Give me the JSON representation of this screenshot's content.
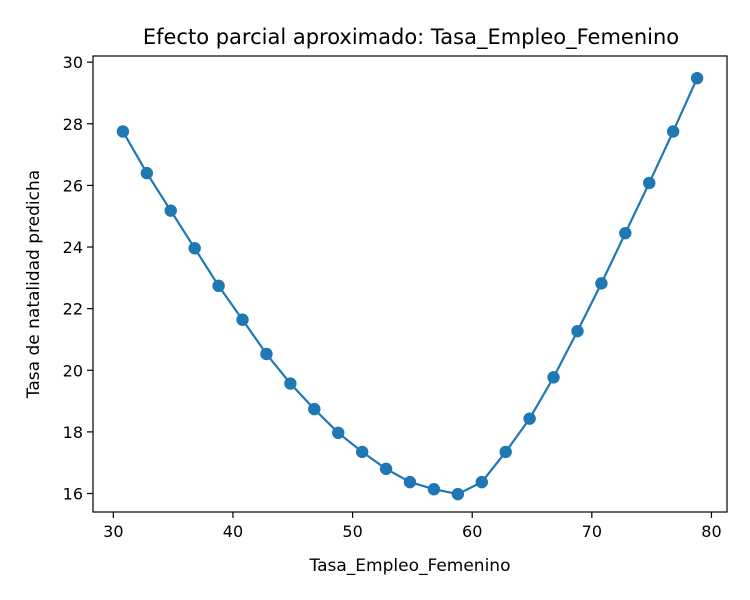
{
  "chart_data": {
    "type": "line",
    "title": "Efecto parcial aproximado: Tasa_Empleo_Femenino",
    "xlabel": "Tasa_Empleo_Femenino",
    "ylabel": "Tasa de natalidad predicha",
    "xlim": [
      28.3,
      81.3
    ],
    "ylim": [
      15.4,
      30.2
    ],
    "xticks": [
      30,
      40,
      50,
      60,
      70,
      80
    ],
    "yticks": [
      16,
      18,
      20,
      22,
      24,
      26,
      28,
      30
    ],
    "grid": false,
    "series": [
      {
        "color": "#1f77b4",
        "marker": "circle",
        "x": [
          30.8,
          32.8,
          34.8,
          36.8,
          38.8,
          40.8,
          42.8,
          44.8,
          46.8,
          48.8,
          50.8,
          52.8,
          54.8,
          56.8,
          58.8,
          60.8,
          62.8,
          64.8,
          66.8,
          68.8,
          70.8,
          72.8,
          74.8,
          76.8,
          78.8
        ],
        "y": [
          27.75,
          26.4,
          25.18,
          23.96,
          22.74,
          21.64,
          20.53,
          19.57,
          18.74,
          17.97,
          17.35,
          16.8,
          16.37,
          16.14,
          15.98,
          16.37,
          17.35,
          18.43,
          19.77,
          21.27,
          22.82,
          24.45,
          26.08,
          27.75,
          29.48
        ]
      }
    ]
  }
}
